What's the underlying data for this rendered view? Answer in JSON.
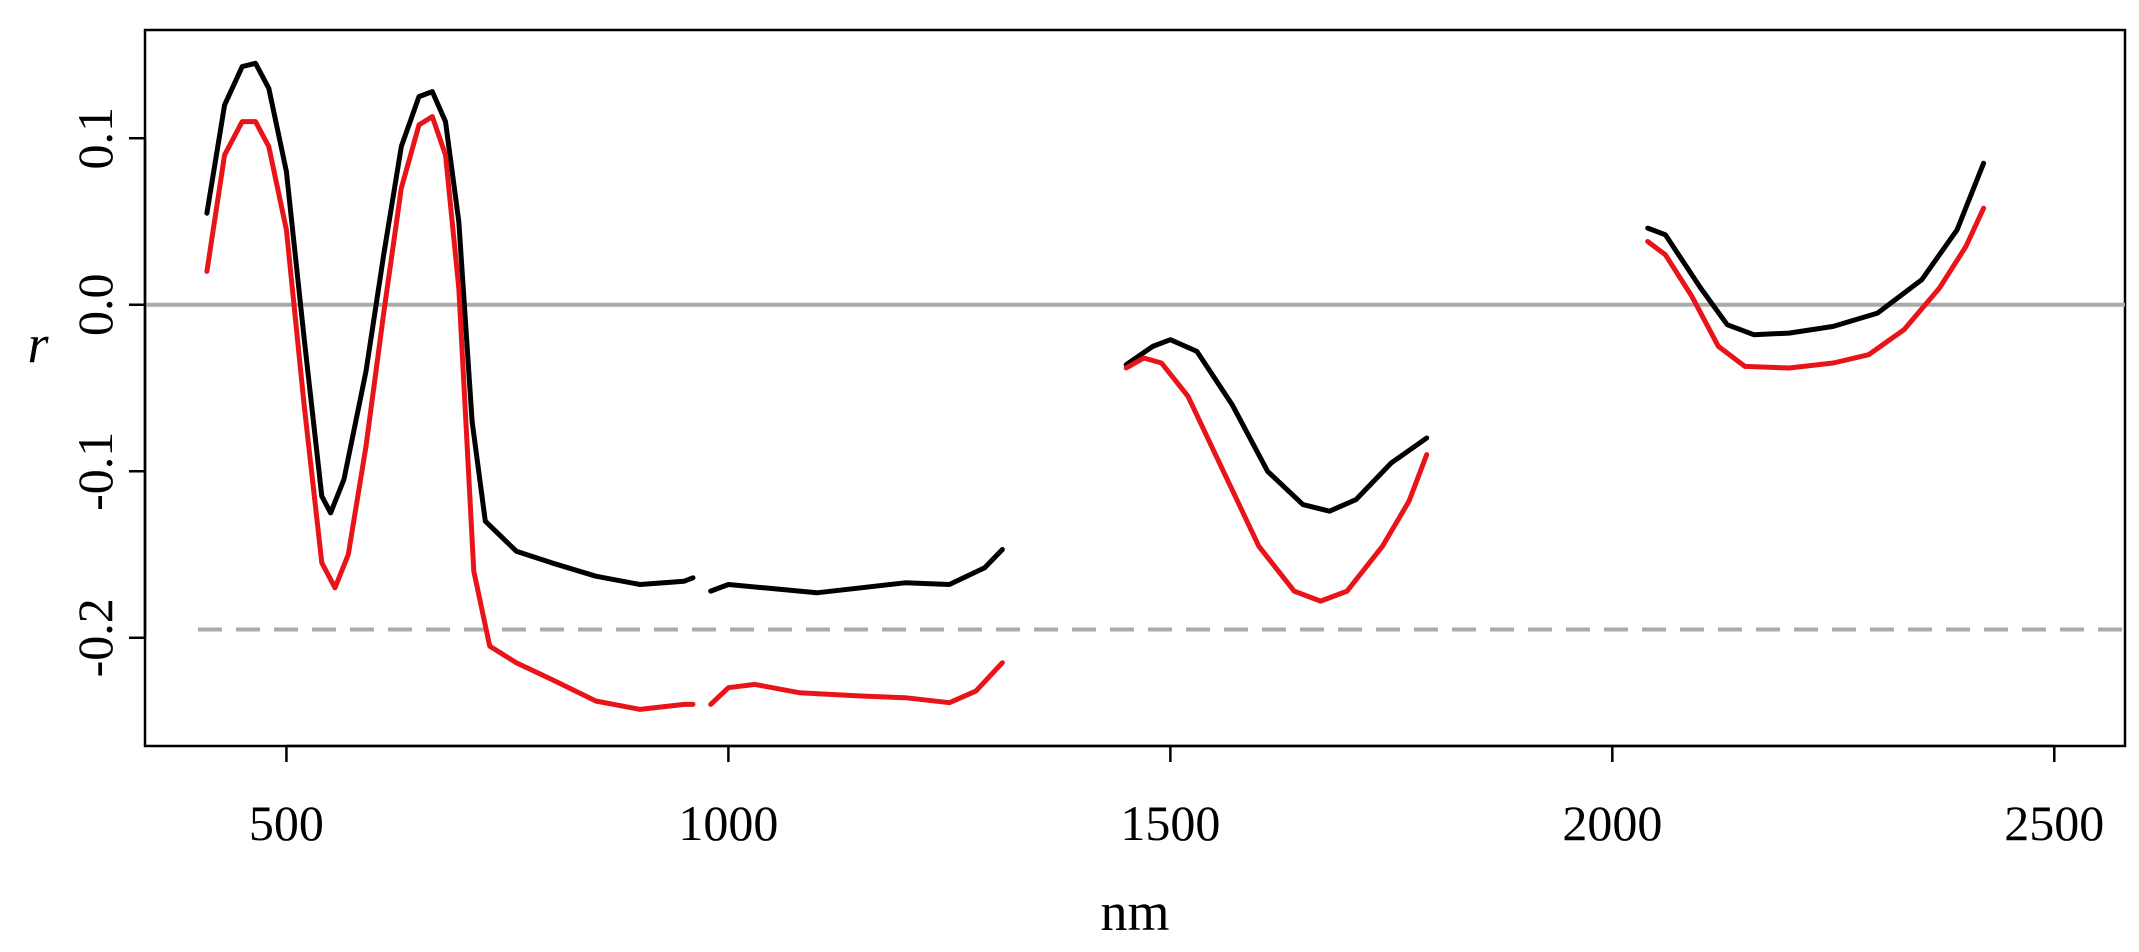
{
  "chart_data": {
    "type": "line",
    "title": "",
    "xlabel": "nm",
    "ylabel": "r",
    "xlim": [
      340,
      2580
    ],
    "ylim": [
      -0.265,
      0.165
    ],
    "x_ticks": [
      500,
      1000,
      1500,
      2000,
      2500
    ],
    "x_tick_labels": [
      "500",
      "1000",
      "1500",
      "2000",
      "2500"
    ],
    "y_ticks": [
      -0.2,
      -0.1,
      0.0,
      0.1
    ],
    "y_tick_labels": [
      "-0.2",
      "-0.1",
      "0.0",
      "0.1"
    ],
    "grid": false,
    "reference_lines": [
      {
        "y": 0.0,
        "color": "#aaaaaa",
        "style": "solid"
      },
      {
        "y": -0.195,
        "color": "#aaaaaa",
        "style": "dashed"
      }
    ],
    "series": [
      {
        "color": "#000000",
        "segments": [
          [
            [
              410,
              0.055
            ],
            [
              430,
              0.12
            ],
            [
              450,
              0.143
            ],
            [
              465,
              0.145
            ],
            [
              480,
              0.13
            ],
            [
              500,
              0.08
            ],
            [
              520,
              -0.02
            ],
            [
              540,
              -0.115
            ],
            [
              550,
              -0.125
            ],
            [
              565,
              -0.105
            ],
            [
              590,
              -0.04
            ],
            [
              610,
              0.03
            ],
            [
              630,
              0.095
            ],
            [
              650,
              0.125
            ],
            [
              665,
              0.128
            ],
            [
              680,
              0.11
            ],
            [
              695,
              0.05
            ],
            [
              710,
              -0.07
            ],
            [
              725,
              -0.13
            ],
            [
              760,
              -0.148
            ],
            [
              800,
              -0.155
            ],
            [
              850,
              -0.163
            ],
            [
              900,
              -0.168
            ],
            [
              950,
              -0.166
            ],
            [
              960,
              -0.164
            ]
          ],
          [
            [
              980,
              -0.172
            ],
            [
              1000,
              -0.168
            ],
            [
              1040,
              -0.17
            ],
            [
              1100,
              -0.173
            ],
            [
              1150,
              -0.17
            ],
            [
              1200,
              -0.167
            ],
            [
              1250,
              -0.168
            ],
            [
              1290,
              -0.158
            ],
            [
              1310,
              -0.147
            ]
          ],
          [
            [
              1450,
              -0.036
            ],
            [
              1480,
              -0.025
            ],
            [
              1500,
              -0.021
            ],
            [
              1530,
              -0.028
            ],
            [
              1570,
              -0.06
            ],
            [
              1610,
              -0.1
            ],
            [
              1650,
              -0.12
            ],
            [
              1680,
              -0.124
            ],
            [
              1710,
              -0.117
            ],
            [
              1750,
              -0.095
            ],
            [
              1790,
              -0.08
            ]
          ],
          [
            [
              2040,
              0.046
            ],
            [
              2060,
              0.042
            ],
            [
              2100,
              0.01
            ],
            [
              2130,
              -0.012
            ],
            [
              2160,
              -0.018
            ],
            [
              2200,
              -0.017
            ],
            [
              2250,
              -0.013
            ],
            [
              2300,
              -0.005
            ],
            [
              2350,
              0.015
            ],
            [
              2390,
              0.045
            ],
            [
              2420,
              0.085
            ]
          ]
        ]
      },
      {
        "color": "#e8141a",
        "segments": [
          [
            [
              410,
              0.02
            ],
            [
              430,
              0.09
            ],
            [
              450,
              0.11
            ],
            [
              465,
              0.11
            ],
            [
              480,
              0.095
            ],
            [
              500,
              0.045
            ],
            [
              520,
              -0.06
            ],
            [
              540,
              -0.155
            ],
            [
              555,
              -0.17
            ],
            [
              570,
              -0.15
            ],
            [
              590,
              -0.085
            ],
            [
              610,
              -0.005
            ],
            [
              630,
              0.07
            ],
            [
              650,
              0.108
            ],
            [
              665,
              0.113
            ],
            [
              680,
              0.09
            ],
            [
              695,
              0.01
            ],
            [
              712,
              -0.16
            ],
            [
              730,
              -0.205
            ],
            [
              760,
              -0.215
            ],
            [
              800,
              -0.225
            ],
            [
              850,
              -0.238
            ],
            [
              900,
              -0.243
            ],
            [
              950,
              -0.24
            ],
            [
              960,
              -0.24
            ]
          ],
          [
            [
              980,
              -0.24
            ],
            [
              1000,
              -0.23
            ],
            [
              1030,
              -0.228
            ],
            [
              1080,
              -0.233
            ],
            [
              1150,
              -0.235
            ],
            [
              1200,
              -0.236
            ],
            [
              1250,
              -0.239
            ],
            [
              1280,
              -0.232
            ],
            [
              1310,
              -0.215
            ]
          ],
          [
            [
              1450,
              -0.038
            ],
            [
              1470,
              -0.032
            ],
            [
              1490,
              -0.035
            ],
            [
              1520,
              -0.055
            ],
            [
              1560,
              -0.1
            ],
            [
              1600,
              -0.145
            ],
            [
              1640,
              -0.172
            ],
            [
              1670,
              -0.178
            ],
            [
              1700,
              -0.172
            ],
            [
              1740,
              -0.145
            ],
            [
              1770,
              -0.118
            ],
            [
              1790,
              -0.09
            ]
          ],
          [
            [
              2040,
              0.038
            ],
            [
              2060,
              0.03
            ],
            [
              2090,
              0.005
            ],
            [
              2120,
              -0.025
            ],
            [
              2150,
              -0.037
            ],
            [
              2200,
              -0.038
            ],
            [
              2250,
              -0.035
            ],
            [
              2290,
              -0.03
            ],
            [
              2330,
              -0.015
            ],
            [
              2370,
              0.01
            ],
            [
              2400,
              0.035
            ],
            [
              2420,
              0.058
            ]
          ]
        ]
      }
    ]
  }
}
